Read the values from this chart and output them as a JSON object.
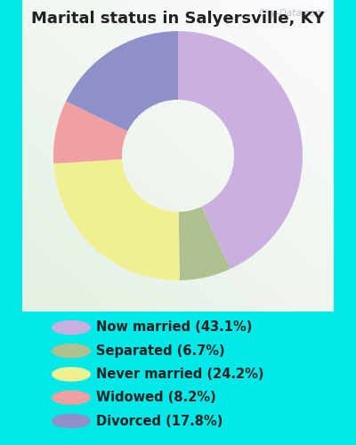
{
  "title": "Marital status in Salyersville, KY",
  "fig_bg_color": "#00e8e8",
  "chart_bg_gradient_colors": [
    "#e8f5ee",
    "#f5f5f8"
  ],
  "slices": [
    {
      "label": "Now married (43.1%)",
      "value": 43.1,
      "color": "#c9b0e0"
    },
    {
      "label": "Separated (6.7%)",
      "value": 6.7,
      "color": "#b0c090"
    },
    {
      "label": "Never married (24.2%)",
      "value": 24.2,
      "color": "#f0f090"
    },
    {
      "label": "Widowed (8.2%)",
      "value": 8.2,
      "color": "#f0a0a0"
    },
    {
      "label": "Divorced (17.8%)",
      "value": 17.8,
      "color": "#9090c8"
    }
  ],
  "title_fontsize": 13,
  "legend_fontsize": 10.5,
  "watermark": "City-Data.com",
  "donut_width": 0.55,
  "start_angle": 90
}
